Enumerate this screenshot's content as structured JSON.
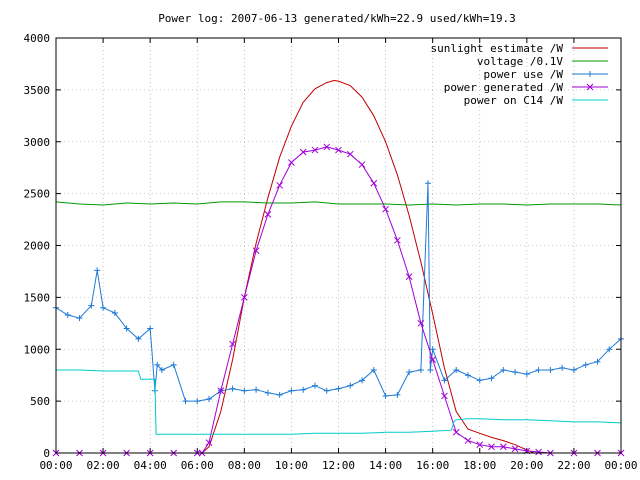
{
  "chart_data": {
    "type": "line",
    "title": "Power log: 2007-06-13 generated/kWh=22.9 used/kWh=19.3",
    "xlabel": "",
    "ylabel": "",
    "xlim": [
      0,
      24
    ],
    "ylim": [
      0,
      4000
    ],
    "grid": true,
    "legend_position": "top-right",
    "x_tick_labels": [
      "00:00",
      "02:00",
      "04:00",
      "06:00",
      "08:00",
      "10:00",
      "12:00",
      "14:00",
      "16:00",
      "18:00",
      "20:00",
      "22:00",
      "00:00"
    ],
    "y_tick_labels": [
      "0",
      "500",
      "1000",
      "1500",
      "2000",
      "2500",
      "3000",
      "3500",
      "4000"
    ],
    "series": [
      {
        "name": "sunlight estimate /W",
        "color": "#c00000",
        "style": "line",
        "x": [
          6.2,
          6.5,
          7.0,
          7.5,
          8.0,
          8.5,
          9.0,
          9.5,
          10.0,
          10.5,
          11.0,
          11.5,
          11.8,
          12.0,
          12.5,
          13.0,
          13.5,
          14.0,
          14.5,
          15.0,
          15.5,
          16.0,
          16.5,
          17.0,
          17.5,
          18.0,
          18.5,
          19.0,
          19.5,
          20.0,
          20.3
        ],
        "values": [
          0,
          60,
          400,
          900,
          1500,
          2020,
          2460,
          2850,
          3150,
          3380,
          3510,
          3570,
          3590,
          3585,
          3540,
          3430,
          3250,
          3000,
          2680,
          2290,
          1840,
          1340,
          820,
          400,
          230,
          190,
          150,
          120,
          80,
          30,
          0
        ]
      },
      {
        "name": "voltage /0.1V",
        "color": "#009a00",
        "style": "line",
        "x": [
          0,
          1,
          2,
          3,
          4,
          5,
          6,
          7,
          8,
          9,
          10,
          11,
          12,
          13,
          14,
          15,
          16,
          17,
          18,
          19,
          20,
          21,
          22,
          23,
          24
        ],
        "values": [
          2420,
          2400,
          2390,
          2410,
          2400,
          2410,
          2400,
          2420,
          2420,
          2410,
          2410,
          2420,
          2400,
          2400,
          2400,
          2390,
          2400,
          2390,
          2400,
          2400,
          2390,
          2400,
          2400,
          2400,
          2390
        ]
      },
      {
        "name": "power use /W",
        "color": "#1e7ad6",
        "style": "line-plus",
        "x": [
          0,
          0.5,
          1,
          1.5,
          1.75,
          2,
          2.5,
          3,
          3.5,
          4,
          4.2,
          4.3,
          4.5,
          5,
          5.5,
          6,
          6.5,
          7,
          7.5,
          8,
          8.5,
          9,
          9.5,
          10,
          10.5,
          11,
          11.5,
          12,
          12.5,
          13,
          13.5,
          14,
          14.5,
          15,
          15.5,
          15.8,
          15.9,
          16,
          16.5,
          17,
          17.5,
          18,
          18.5,
          19,
          19.5,
          20,
          20.5,
          21,
          21.5,
          22,
          22.5,
          23,
          23.5,
          24
        ],
        "values": [
          1400,
          1330,
          1300,
          1420,
          1760,
          1400,
          1350,
          1200,
          1100,
          1200,
          600,
          850,
          800,
          850,
          500,
          500,
          520,
          600,
          620,
          600,
          610,
          580,
          560,
          600,
          610,
          650,
          600,
          620,
          650,
          700,
          800,
          550,
          560,
          780,
          800,
          2600,
          800,
          1000,
          700,
          800,
          750,
          700,
          720,
          800,
          780,
          760,
          800,
          800,
          820,
          800,
          850,
          880,
          1000,
          1100
        ]
      },
      {
        "name": "power generated /W",
        "color": "#a000d8",
        "style": "line-x",
        "x": [
          0,
          1,
          2,
          3,
          4,
          5,
          6,
          6.2,
          6.5,
          7,
          7.5,
          8,
          8.5,
          9,
          9.5,
          10,
          10.5,
          11,
          11.5,
          12,
          12.5,
          13,
          13.5,
          14,
          14.5,
          15,
          15.5,
          16,
          16.5,
          17,
          17.5,
          18,
          18.5,
          19,
          19.5,
          20,
          20.5,
          21,
          22,
          23,
          24
        ],
        "values": [
          0,
          0,
          0,
          0,
          0,
          0,
          0,
          0,
          100,
          600,
          1050,
          1500,
          1950,
          2300,
          2580,
          2800,
          2900,
          2920,
          2950,
          2920,
          2880,
          2780,
          2600,
          2350,
          2050,
          1700,
          1250,
          900,
          550,
          200,
          120,
          80,
          60,
          60,
          40,
          20,
          10,
          0,
          0,
          0,
          0
        ]
      },
      {
        "name": "power on C14 /W",
        "color": "#00cccc",
        "style": "line",
        "x": [
          0,
          1,
          2,
          3,
          3.5,
          3.6,
          4,
          4.2,
          4.25,
          5,
          6,
          7,
          8,
          9,
          10,
          11,
          12,
          13,
          14,
          15,
          16,
          16.8,
          16.9,
          17,
          17.5,
          18,
          19,
          20,
          21,
          22,
          23,
          24
        ],
        "values": [
          800,
          800,
          790,
          790,
          790,
          710,
          710,
          710,
          180,
          180,
          180,
          180,
          180,
          180,
          180,
          190,
          190,
          190,
          200,
          200,
          210,
          220,
          300,
          320,
          330,
          330,
          320,
          320,
          310,
          300,
          300,
          290
        ]
      }
    ]
  }
}
